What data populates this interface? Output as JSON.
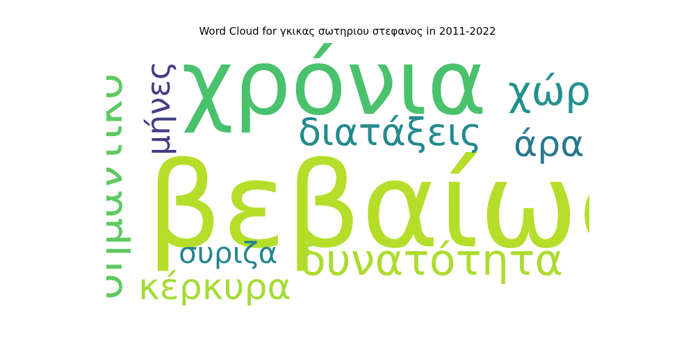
{
  "title": "Word Cloud for γκικας σωτηριου στεφανος in 2011-2022",
  "words": [
    {
      "text": "βεβαίως",
      "color": "#b5de2b"
    },
    {
      "text": "χρόνια",
      "color": "#4ac16d"
    },
    {
      "text": "σημαντικό",
      "color": "#5ec962"
    },
    {
      "text": "μήνες",
      "color": "#433e85"
    },
    {
      "text": "χώρα",
      "color": "#21918c"
    },
    {
      "text": "διατάξεις",
      "color": "#238a8d"
    },
    {
      "text": "άρα",
      "color": "#2a788e"
    },
    {
      "text": "συριζα",
      "color": "#25858e"
    },
    {
      "text": "δυνατότητα",
      "color": "#addc30"
    },
    {
      "text": "κέρκυρα",
      "color": "#a5db36"
    }
  ]
}
